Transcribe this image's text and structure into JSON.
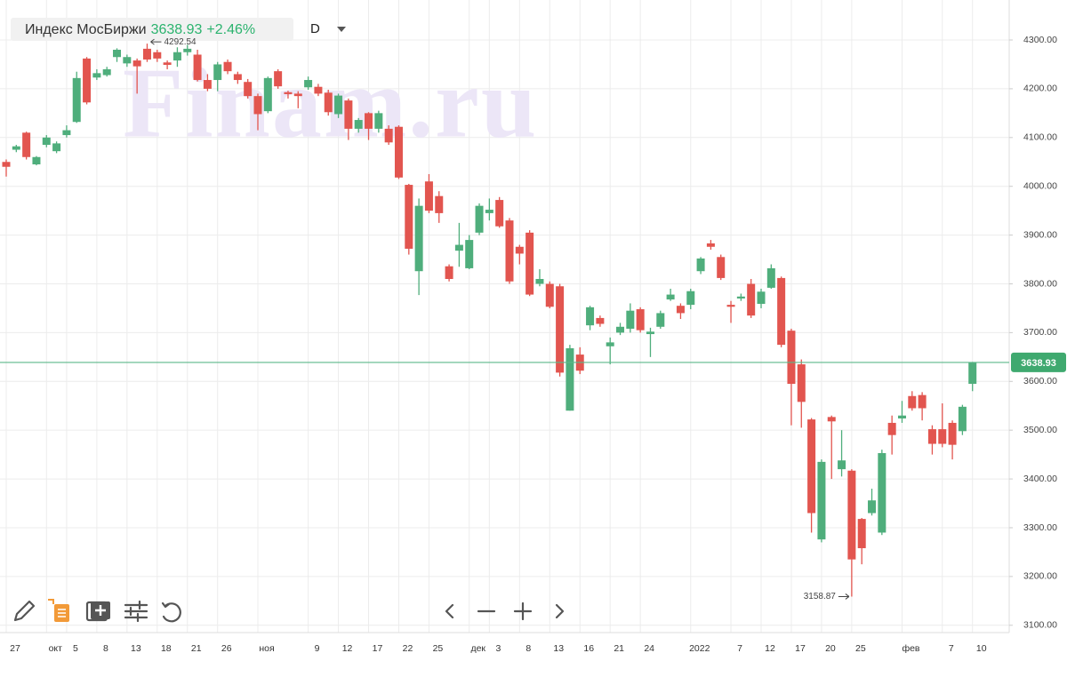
{
  "chart_data": {
    "type": "candlestick",
    "title": "Индекс МосБиржи",
    "change": "+2.46%",
    "interval": "D",
    "watermark": "Finam.ru",
    "up_color": "#4fae7c",
    "down_color": "#e2554f",
    "categories": [
      "27",
      null,
      null,
      null,
      "окт",
      null,
      "5",
      null,
      null,
      "8",
      null,
      null,
      "13",
      null,
      null,
      "18",
      null,
      null,
      "21",
      null,
      null,
      "26",
      null,
      null,
      null,
      "ноя",
      null,
      null,
      null,
      null,
      "9",
      null,
      null,
      "12",
      null,
      null,
      "17",
      null,
      null,
      "22",
      null,
      null,
      "25",
      null,
      null,
      null,
      "дек",
      null,
      "3",
      null,
      null,
      "8",
      null,
      null,
      "13",
      null,
      null,
      "16",
      null,
      null,
      "21",
      null,
      null,
      "24",
      null,
      null,
      null,
      null,
      "2022",
      null,
      null,
      null,
      "7",
      null,
      null,
      "12",
      null,
      null,
      "17",
      null,
      null,
      "20",
      null,
      null,
      "25",
      null,
      null,
      null,
      null,
      "фев",
      null,
      null,
      null,
      "7",
      null,
      null,
      "10"
    ],
    "open": [
      4050,
      4075,
      4110,
      4045,
      4085,
      4072,
      4105,
      4132,
      4262,
      4223,
      4228,
      4265,
      4252,
      4258,
      4282,
      4275,
      4254,
      4258,
      4275,
      4270,
      4218,
      4218,
      4255,
      4230,
      4214,
      4185,
      4154,
      4236,
      4193,
      4190,
      4203,
      4204,
      4192,
      4148,
      4176,
      4118,
      4150,
      4118,
      4118,
      4122,
      4003,
      3826,
      4010,
      3980,
      3836,
      3868,
      3832,
      3905,
      3945,
      3972,
      3930,
      3876,
      3905,
      3800,
      3800,
      3795,
      3540,
      3655,
      3715,
      3730,
      3672,
      3700,
      3708,
      3748,
      3697,
      3712,
      3768,
      3755,
      3757,
      3826,
      3883,
      3855,
      3757,
      3770,
      3800,
      3759,
      3792,
      3812,
      3704,
      3635,
      3522,
      3276,
      3527,
      3420,
      3417,
      3318,
      3330,
      3290,
      3515,
      3524,
      3570,
      3572,
      3502,
      3502,
      3515,
      3498,
      3595
    ],
    "high": [
      4055,
      4085,
      4112,
      4062,
      4105,
      4092,
      4125,
      4235,
      4265,
      4240,
      4245,
      4283,
      4270,
      4262,
      4292.54,
      4280,
      4258,
      4285,
      4290,
      4280,
      4230,
      4255,
      4260,
      4235,
      4220,
      4190,
      4225,
      4240,
      4196,
      4195,
      4225,
      4210,
      4198,
      4190,
      4180,
      4140,
      4152,
      4155,
      4125,
      4125,
      4005,
      3975,
      4025,
      3990,
      3840,
      3925,
      3900,
      3965,
      3975,
      3978,
      3935,
      3880,
      3910,
      3830,
      3805,
      3800,
      3675,
      3670,
      3755,
      3735,
      3690,
      3720,
      3760,
      3752,
      3710,
      3745,
      3790,
      3760,
      3790,
      3855,
      3890,
      3860,
      3765,
      3780,
      3810,
      3790,
      3840,
      3815,
      3708,
      3645,
      3525,
      3440,
      3530,
      3500,
      3420,
      3320,
      3380,
      3460,
      3530,
      3560,
      3580,
      3578,
      3510,
      3555,
      3520,
      3552,
      3640
    ],
    "low": [
      4020,
      4070,
      4055,
      4043,
      4080,
      4068,
      4100,
      4130,
      4168,
      4218,
      4225,
      4255,
      4245,
      4190,
      4255,
      4255,
      4240,
      4245,
      4268,
      4215,
      4195,
      4195,
      4230,
      4210,
      4180,
      4115,
      4150,
      4200,
      4180,
      4160,
      4198,
      4185,
      4145,
      4140,
      4095,
      4110,
      4095,
      4110,
      4085,
      4015,
      3860,
      3777,
      3945,
      3925,
      3805,
      3835,
      3830,
      3900,
      3930,
      3915,
      3800,
      3840,
      3775,
      3795,
      3750,
      3610,
      3540,
      3615,
      3705,
      3712,
      3635,
      3695,
      3700,
      3700,
      3650,
      3708,
      3765,
      3728,
      3748,
      3820,
      3870,
      3808,
      3720,
      3765,
      3730,
      3750,
      3790,
      3670,
      3510,
      3505,
      3290,
      3270,
      3400,
      3405,
      3158.87,
      3225,
      3325,
      3285,
      3450,
      3515,
      3540,
      3520,
      3450,
      3465,
      3440,
      3490,
      3580
    ],
    "close": [
      4040,
      4082,
      4060,
      4060,
      4100,
      4088,
      4115,
      4222,
      4172,
      4232,
      4240,
      4280,
      4265,
      4246,
      4260,
      4262,
      4249,
      4275,
      4282,
      4218,
      4200,
      4250,
      4236,
      4218,
      4185,
      4148,
      4222,
      4205,
      4189,
      4185,
      4218,
      4190,
      4152,
      4186,
      4118,
      4136,
      4118,
      4150,
      4090,
      4018,
      3872,
      3960,
      3950,
      3945,
      3810,
      3880,
      3890,
      3960,
      3952,
      3918,
      3805,
      3862,
      3778,
      3810,
      3753,
      3618,
      3668,
      3622,
      3752,
      3718,
      3680,
      3712,
      3745,
      3705,
      3702,
      3740,
      3778,
      3740,
      3785,
      3852,
      3876,
      3812,
      3753,
      3774,
      3735,
      3784,
      3832,
      3675,
      3595,
      3558,
      3330,
      3435,
      3518,
      3438,
      3235,
      3258,
      3356,
      3453,
      3490,
      3530,
      3545,
      3545,
      3472,
      3472,
      3470,
      3548,
      3638.93
    ],
    "ylim": [
      3085,
      4382
    ],
    "yticks": [
      {
        "value": 3100,
        "label": "3100.00"
      },
      {
        "value": 3200,
        "label": "3200.00"
      },
      {
        "value": 3300,
        "label": "3300.00"
      },
      {
        "value": 3400,
        "label": "3400.00"
      },
      {
        "value": 3500,
        "label": "3500.00"
      },
      {
        "value": 3600,
        "label": "3600.00"
      },
      {
        "value": 3700,
        "label": "3700.00"
      },
      {
        "value": 3800,
        "label": "3800.00"
      },
      {
        "value": 3900,
        "label": "3900.00"
      },
      {
        "value": 4000,
        "label": "4000.00"
      },
      {
        "value": 4100,
        "label": "4100.00"
      },
      {
        "value": 4200,
        "label": "4200.00"
      },
      {
        "value": 4300,
        "label": "4300.00"
      }
    ],
    "grid": true
  }
}
